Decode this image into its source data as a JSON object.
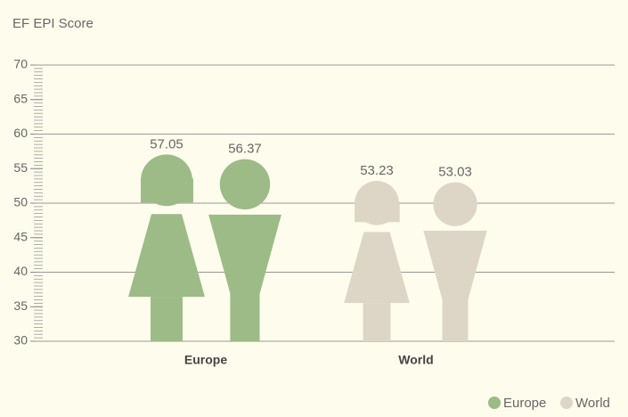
{
  "chart_data": {
    "type": "pictogram",
    "title": "EF EPI Score",
    "series": [
      {
        "name": "Europe",
        "color": "#9cbb87",
        "values": [
          57.05,
          56.37
        ]
      },
      {
        "name": "World",
        "color": "#ddd6c6",
        "values": [
          53.23,
          53.03
        ]
      }
    ],
    "ylim": [
      30,
      70
    ],
    "yticks": [
      30,
      35,
      40,
      45,
      50,
      55,
      60,
      65,
      70
    ],
    "grid": true,
    "legend": "bottom-right"
  }
}
